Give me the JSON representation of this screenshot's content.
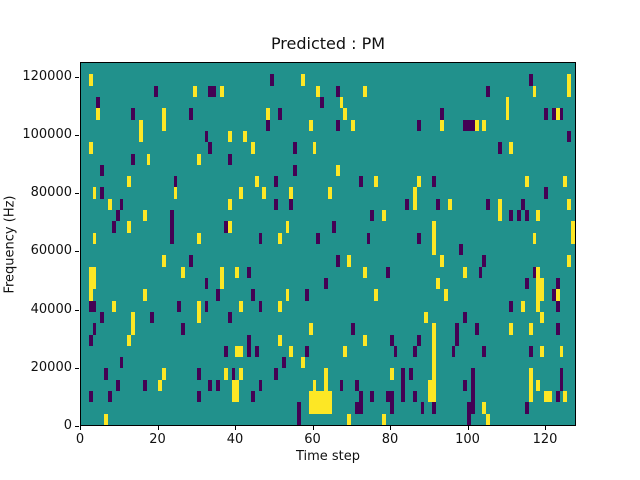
{
  "figure": {
    "kind": "matplotlib-figure",
    "background": "#ffffff"
  },
  "chart_data": {
    "type": "heatmap",
    "title": "Predicted : PM",
    "xlabel": "Time step",
    "ylabel": "Frequency (Hz)",
    "x_range": [
      0,
      128
    ],
    "y_range_hz": [
      0,
      125000
    ],
    "grid_shape": {
      "time_steps": 128,
      "freq_bins": 32
    },
    "x_ticks": [
      0,
      20,
      40,
      60,
      80,
      100,
      120
    ],
    "y_ticks": [
      0,
      20000,
      40000,
      60000,
      80000,
      100000,
      120000
    ],
    "grid": false,
    "legend": "none",
    "colormap": "viridis",
    "value_colors": {
      "background": "#21918c",
      "high": "#fde725",
      "low": "#440154"
    },
    "cells": {
      "high": [
        [
          2,
          30
        ],
        [
          4,
          27
        ],
        [
          2,
          24
        ],
        [
          12,
          21
        ],
        [
          15,
          26
        ],
        [
          15,
          25
        ],
        [
          17,
          23
        ],
        [
          21,
          27
        ],
        [
          21,
          26
        ],
        [
          29,
          29
        ],
        [
          36,
          29
        ],
        [
          38,
          25
        ],
        [
          30,
          23
        ],
        [
          42,
          25
        ],
        [
          57,
          30
        ],
        [
          61,
          29
        ],
        [
          73,
          29
        ],
        [
          67,
          28
        ],
        [
          48,
          27
        ],
        [
          68,
          27
        ],
        [
          59,
          26
        ],
        [
          70,
          26
        ],
        [
          44,
          24
        ],
        [
          60,
          24
        ],
        [
          66,
          22
        ],
        [
          45,
          21
        ],
        [
          76,
          21
        ],
        [
          126,
          30
        ],
        [
          126,
          29
        ],
        [
          117,
          29
        ],
        [
          110,
          28
        ],
        [
          110,
          27
        ],
        [
          123,
          27
        ],
        [
          93,
          26
        ],
        [
          102,
          26
        ],
        [
          104,
          26
        ],
        [
          111,
          24
        ],
        [
          125,
          21
        ],
        [
          87,
          21
        ],
        [
          115,
          21
        ],
        [
          3,
          20
        ],
        [
          7,
          19
        ],
        [
          24,
          20
        ],
        [
          41,
          20
        ],
        [
          38,
          19
        ],
        [
          16,
          18
        ],
        [
          12,
          17
        ],
        [
          38,
          17
        ],
        [
          3,
          16
        ],
        [
          30,
          16
        ],
        [
          21,
          14
        ],
        [
          26,
          13
        ],
        [
          36,
          13
        ],
        [
          40,
          13
        ],
        [
          2,
          13
        ],
        [
          2,
          12
        ],
        [
          2,
          11
        ],
        [
          3,
          13
        ],
        [
          3,
          12
        ],
        [
          16,
          11
        ],
        [
          36,
          12
        ],
        [
          47,
          20
        ],
        [
          54,
          20
        ],
        [
          64,
          20
        ],
        [
          78,
          18
        ],
        [
          53,
          17
        ],
        [
          51,
          16
        ],
        [
          69,
          14
        ],
        [
          73,
          13
        ],
        [
          53,
          11
        ],
        [
          76,
          11
        ],
        [
          51,
          10
        ],
        [
          86,
          20
        ],
        [
          86,
          19
        ],
        [
          95,
          19
        ],
        [
          108,
          19
        ],
        [
          108,
          18
        ],
        [
          118,
          18
        ],
        [
          126,
          19
        ],
        [
          127,
          17
        ],
        [
          127,
          16
        ],
        [
          91,
          17
        ],
        [
          91,
          16
        ],
        [
          91,
          15
        ],
        [
          93,
          14
        ],
        [
          99,
          13
        ],
        [
          117,
          16
        ],
        [
          126,
          14
        ],
        [
          92,
          12
        ],
        [
          94,
          11
        ],
        [
          118,
          13
        ],
        [
          118,
          12
        ],
        [
          118,
          11
        ],
        [
          119,
          12
        ],
        [
          119,
          11
        ],
        [
          123,
          11
        ],
        [
          114,
          10
        ],
        [
          118,
          10
        ],
        [
          8,
          10
        ],
        [
          30,
          10
        ],
        [
          41,
          10
        ],
        [
          13,
          9
        ],
        [
          13,
          8
        ],
        [
          12,
          7
        ],
        [
          30,
          9
        ],
        [
          40,
          6
        ],
        [
          41,
          6
        ],
        [
          21,
          4
        ],
        [
          20,
          3
        ],
        [
          37,
          4
        ],
        [
          41,
          4
        ],
        [
          39,
          3
        ],
        [
          40,
          3
        ],
        [
          39,
          2
        ],
        [
          40,
          2
        ],
        [
          6,
          0
        ],
        [
          59,
          8
        ],
        [
          51,
          7
        ],
        [
          54,
          6
        ],
        [
          68,
          6
        ],
        [
          73,
          7
        ],
        [
          57,
          5
        ],
        [
          80,
          4
        ],
        [
          59,
          2
        ],
        [
          60,
          2
        ],
        [
          61,
          2
        ],
        [
          62,
          2
        ],
        [
          63,
          2
        ],
        [
          64,
          2
        ],
        [
          59,
          1
        ],
        [
          60,
          1
        ],
        [
          61,
          1
        ],
        [
          62,
          1
        ],
        [
          63,
          1
        ],
        [
          64,
          1
        ],
        [
          63,
          4
        ],
        [
          63,
          3
        ],
        [
          60,
          3
        ],
        [
          69,
          0
        ],
        [
          78,
          0
        ],
        [
          89,
          9
        ],
        [
          91,
          8
        ],
        [
          91,
          7
        ],
        [
          91,
          6
        ],
        [
          91,
          5
        ],
        [
          91,
          4
        ],
        [
          91,
          3
        ],
        [
          91,
          2
        ],
        [
          90,
          3
        ],
        [
          90,
          2
        ],
        [
          104,
          1
        ],
        [
          105,
          0
        ],
        [
          111,
          8
        ],
        [
          116,
          8
        ],
        [
          119,
          6
        ],
        [
          119,
          9
        ],
        [
          116,
          4
        ],
        [
          116,
          3
        ],
        [
          116,
          2
        ],
        [
          118,
          3
        ],
        [
          120,
          2
        ],
        [
          121,
          2
        ],
        [
          124,
          6
        ],
        [
          125,
          2
        ]
      ],
      "low": [
        [
          4,
          28
        ],
        [
          5,
          22
        ],
        [
          13,
          27
        ],
        [
          13,
          23
        ],
        [
          19,
          29
        ],
        [
          33,
          29
        ],
        [
          34,
          29
        ],
        [
          28,
          27
        ],
        [
          32,
          25
        ],
        [
          33,
          24
        ],
        [
          38,
          23
        ],
        [
          24,
          21
        ],
        [
          49,
          30
        ],
        [
          66,
          29
        ],
        [
          62,
          28
        ],
        [
          51,
          27
        ],
        [
          48,
          26
        ],
        [
          66,
          26
        ],
        [
          55,
          24
        ],
        [
          55,
          22
        ],
        [
          50,
          21
        ],
        [
          72,
          21
        ],
        [
          116,
          30
        ],
        [
          105,
          29
        ],
        [
          93,
          27
        ],
        [
          120,
          27
        ],
        [
          122,
          27
        ],
        [
          124,
          27
        ],
        [
          87,
          26
        ],
        [
          99,
          26
        ],
        [
          100,
          26
        ],
        [
          101,
          26
        ],
        [
          126,
          25
        ],
        [
          108,
          24
        ],
        [
          91,
          21
        ],
        [
          5,
          20
        ],
        [
          10,
          19
        ],
        [
          9,
          18
        ],
        [
          23,
          18
        ],
        [
          8,
          17
        ],
        [
          23,
          17
        ],
        [
          37,
          17
        ],
        [
          23,
          16
        ],
        [
          28,
          14
        ],
        [
          2,
          10
        ],
        [
          32,
          12
        ],
        [
          35,
          11
        ],
        [
          50,
          19
        ],
        [
          54,
          19
        ],
        [
          75,
          18
        ],
        [
          84,
          19
        ],
        [
          65,
          17
        ],
        [
          46,
          16
        ],
        [
          61,
          16
        ],
        [
          74,
          16
        ],
        [
          66,
          14
        ],
        [
          79,
          13
        ],
        [
          43,
          13
        ],
        [
          63,
          12
        ],
        [
          44,
          11
        ],
        [
          58,
          11
        ],
        [
          92,
          19
        ],
        [
          120,
          20
        ],
        [
          105,
          19
        ],
        [
          114,
          19
        ],
        [
          111,
          18
        ],
        [
          113,
          18
        ],
        [
          115,
          18
        ],
        [
          87,
          16
        ],
        [
          98,
          15
        ],
        [
          104,
          14
        ],
        [
          103,
          13
        ],
        [
          117,
          13
        ],
        [
          115,
          12
        ],
        [
          123,
          12
        ],
        [
          122,
          11
        ],
        [
          111,
          10
        ],
        [
          123,
          10
        ],
        [
          3,
          10
        ],
        [
          25,
          10
        ],
        [
          32,
          10
        ],
        [
          5,
          9
        ],
        [
          3,
          8
        ],
        [
          2,
          7
        ],
        [
          18,
          9
        ],
        [
          26,
          8
        ],
        [
          38,
          9
        ],
        [
          37,
          6
        ],
        [
          10,
          5
        ],
        [
          6,
          4
        ],
        [
          9,
          3
        ],
        [
          16,
          3
        ],
        [
          30,
          4
        ],
        [
          33,
          3
        ],
        [
          35,
          3
        ],
        [
          39,
          4
        ],
        [
          2,
          2
        ],
        [
          7,
          2
        ],
        [
          30,
          2
        ],
        [
          46,
          10
        ],
        [
          70,
          8
        ],
        [
          43,
          7
        ],
        [
          43,
          6
        ],
        [
          45,
          6
        ],
        [
          58,
          6
        ],
        [
          80,
          7
        ],
        [
          81,
          6
        ],
        [
          52,
          5
        ],
        [
          83,
          4
        ],
        [
          83,
          3
        ],
        [
          83,
          2
        ],
        [
          50,
          4
        ],
        [
          46,
          3
        ],
        [
          44,
          2
        ],
        [
          67,
          3
        ],
        [
          71,
          3
        ],
        [
          72,
          2
        ],
        [
          71,
          1
        ],
        [
          72,
          1
        ],
        [
          75,
          2
        ],
        [
          79,
          2
        ],
        [
          80,
          2
        ],
        [
          80,
          1
        ],
        [
          56,
          1
        ],
        [
          56,
          0
        ],
        [
          99,
          9
        ],
        [
          91,
          1
        ],
        [
          87,
          7
        ],
        [
          86,
          6
        ],
        [
          85,
          4
        ],
        [
          86,
          2
        ],
        [
          88,
          1
        ],
        [
          97,
          8
        ],
        [
          97,
          7
        ],
        [
          96,
          6
        ],
        [
          99,
          3
        ],
        [
          101,
          4
        ],
        [
          101,
          3
        ],
        [
          101,
          2
        ],
        [
          101,
          1
        ],
        [
          102,
          8
        ],
        [
          104,
          6
        ],
        [
          100,
          1
        ],
        [
          100,
          0
        ],
        [
          116,
          6
        ],
        [
          123,
          8
        ],
        [
          124,
          4
        ],
        [
          124,
          3
        ],
        [
          123,
          2
        ],
        [
          115,
          1
        ]
      ]
    }
  }
}
